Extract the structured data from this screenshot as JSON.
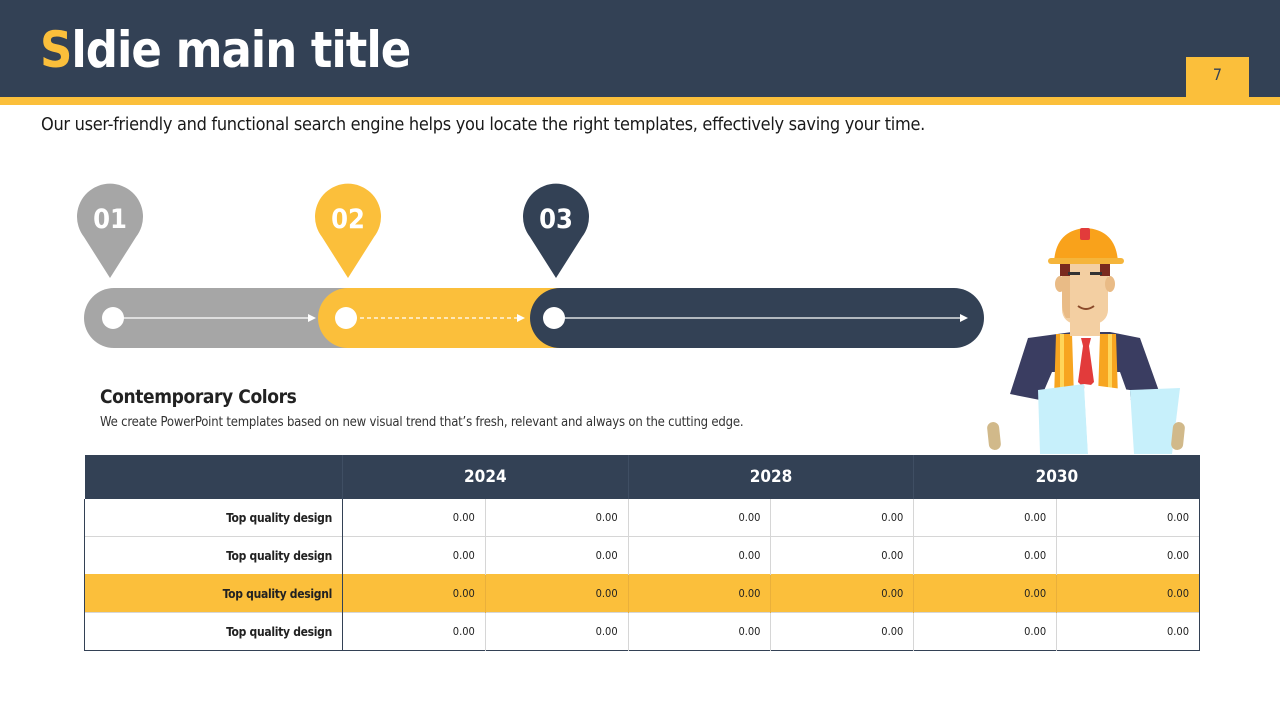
{
  "slide": {
    "title_first": "S",
    "title_rest": "ldie main title",
    "page_number": "7",
    "subtitle": "Our user-friendly and functional search engine helps you locate the right templates, effectively saving your time."
  },
  "timeline": {
    "steps": [
      {
        "label": "01",
        "color": "#a6a6a6"
      },
      {
        "label": "02",
        "color": "#fbbf3b"
      },
      {
        "label": "03",
        "color": "#334155"
      }
    ]
  },
  "section": {
    "title": "Contemporary Colors",
    "description": "We create PowerPoint templates based on new visual trend that’s fresh, relevant and always on the cutting edge."
  },
  "table": {
    "headers": [
      "",
      "2024",
      "2028",
      "2030"
    ],
    "rows": [
      {
        "label": "Top quality design",
        "values": [
          "0.00",
          "0.00",
          "0.00",
          "0.00",
          "0.00",
          "0.00"
        ]
      },
      {
        "label": "Top quality design",
        "values": [
          "0.00",
          "0.00",
          "0.00",
          "0.00",
          "0.00",
          "0.00"
        ]
      },
      {
        "label": "Top quality designl",
        "values": [
          "0.00",
          "0.00",
          "0.00",
          "0.00",
          "0.00",
          "0.00"
        ]
      },
      {
        "label": "Top quality design",
        "values": [
          "0.00",
          "0.00",
          "0.00",
          "0.00",
          "0.00",
          "0.00"
        ]
      }
    ],
    "highlight_row": 2
  },
  "colors": {
    "navy": "#334155",
    "yellow": "#fbbf3b",
    "gray": "#a6a6a6"
  },
  "icons": [
    "construction-worker-illustration",
    "location-pin-icon",
    "arrow-right-icon"
  ]
}
